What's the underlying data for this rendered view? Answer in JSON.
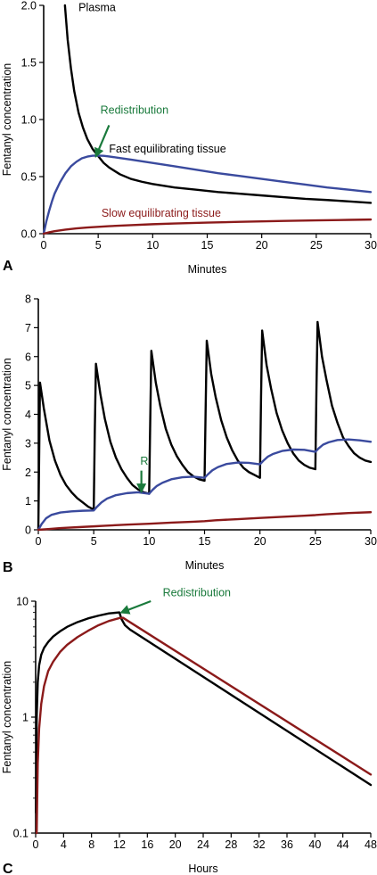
{
  "colors": {
    "plasma": "#000000",
    "fast": "#3a4a9e",
    "slow": "#8b1a1a",
    "annotation": "#1a7a3c"
  },
  "chart_data": [
    {
      "type": "line",
      "panel_label": "A",
      "xlabel": "Minutes",
      "ylabel": "Fentanyl concentration",
      "xlim": [
        0,
        30
      ],
      "ylim": [
        0,
        2.0
      ],
      "xticks": [
        0,
        5,
        10,
        15,
        20,
        25,
        30
      ],
      "yticks": [
        0.0,
        0.5,
        1.0,
        1.5,
        2.0
      ],
      "ytick_labels": [
        "0.0",
        "0.5",
        "1.0",
        "1.5",
        "2.0"
      ],
      "series": [
        {
          "name": "Plasma",
          "color_key": "plasma",
          "x": [
            1.95,
            2.2,
            2.5,
            2.8,
            3.2,
            3.6,
            4.0,
            4.5,
            5.0,
            5.5,
            6,
            7,
            8,
            9,
            10,
            12,
            14,
            16,
            18,
            20,
            22,
            24,
            26,
            28,
            30
          ],
          "y": [
            2.0,
            1.7,
            1.45,
            1.25,
            1.06,
            0.93,
            0.83,
            0.74,
            0.68,
            0.62,
            0.58,
            0.52,
            0.48,
            0.455,
            0.435,
            0.405,
            0.385,
            0.365,
            0.35,
            0.335,
            0.32,
            0.305,
            0.295,
            0.283,
            0.27
          ]
        },
        {
          "name": "Fast equilibrating tissue",
          "color_key": "fast",
          "x": [
            0,
            0.25,
            0.5,
            0.75,
            1.0,
            1.5,
            2.0,
            2.5,
            3.0,
            3.5,
            4.0,
            4.5,
            5.0,
            5.5,
            6,
            7,
            8,
            10,
            12,
            14,
            16,
            18,
            20,
            22,
            24,
            26,
            28,
            30
          ],
          "y": [
            0,
            0.11,
            0.2,
            0.28,
            0.35,
            0.45,
            0.53,
            0.59,
            0.63,
            0.66,
            0.675,
            0.683,
            0.684,
            0.682,
            0.676,
            0.663,
            0.649,
            0.62,
            0.59,
            0.56,
            0.53,
            0.505,
            0.48,
            0.455,
            0.43,
            0.405,
            0.385,
            0.365
          ]
        },
        {
          "name": "Slow equilibrating tissue",
          "color_key": "slow",
          "x": [
            0,
            0.5,
            1,
            2,
            3,
            4,
            5,
            6,
            8,
            10,
            12,
            15,
            18,
            20,
            22,
            25,
            28,
            30
          ],
          "y": [
            0,
            0.012,
            0.022,
            0.036,
            0.046,
            0.054,
            0.06,
            0.066,
            0.075,
            0.083,
            0.089,
            0.097,
            0.104,
            0.108,
            0.112,
            0.117,
            0.121,
            0.124
          ]
        }
      ],
      "annotations": [
        {
          "text": "Plasma",
          "x": 3.2,
          "y": 1.95,
          "color_key": "plasma"
        },
        {
          "text": "Redistribution",
          "x": 5.2,
          "y": 1.05,
          "color_key": "annotation",
          "arrow_to": [
            4.8,
            0.68
          ],
          "arrow_from": [
            6.0,
            0.95
          ]
        },
        {
          "text": "Fast equilibrating tissue",
          "x": 6.0,
          "y": 0.71,
          "color_key": "plasma"
        },
        {
          "text": "Slow equilibrating tissue",
          "x": 5.3,
          "y": 0.15,
          "color_key": "slow"
        }
      ]
    },
    {
      "type": "line",
      "panel_label": "B",
      "xlabel": "Minutes",
      "ylabel": "Fentanyl concentration",
      "xlim": [
        0,
        30
      ],
      "ylim": [
        0,
        8
      ],
      "xticks": [
        0,
        5,
        10,
        15,
        20,
        25,
        30
      ],
      "yticks": [
        0,
        1,
        2,
        3,
        4,
        5,
        6,
        7,
        8
      ],
      "ytick_labels": [
        "0",
        "1",
        "2",
        "3",
        "4",
        "5",
        "6",
        "7",
        "8"
      ],
      "series": [
        {
          "name": "",
          "color_key": "plasma",
          "x": [
            0,
            0.15,
            0.5,
            1,
            1.5,
            2,
            2.5,
            3,
            3.5,
            4,
            4.5,
            5,
            5.1,
            5.2,
            5.6,
            6,
            6.5,
            7,
            7.5,
            8,
            8.5,
            9,
            9.5,
            10,
            10.1,
            10.2,
            10.6,
            11,
            11.5,
            12,
            12.5,
            13,
            13.5,
            14,
            14.5,
            15,
            15.1,
            15.2,
            15.6,
            16,
            16.5,
            17,
            17.5,
            18,
            18.5,
            19,
            19.5,
            20,
            20.1,
            20.2,
            20.6,
            21,
            21.5,
            22,
            22.5,
            23,
            23.5,
            24,
            24.5,
            25,
            25.1,
            25.2,
            25.6,
            26,
            26.5,
            27,
            27.5,
            28,
            28.5,
            29,
            29.5,
            30
          ],
          "y": [
            0,
            5.1,
            4.2,
            3.1,
            2.4,
            1.9,
            1.55,
            1.3,
            1.1,
            0.95,
            0.8,
            0.7,
            3.5,
            5.75,
            4.7,
            3.85,
            3.05,
            2.5,
            2.1,
            1.8,
            1.55,
            1.4,
            1.3,
            1.25,
            3.8,
            6.2,
            5.1,
            4.3,
            3.5,
            2.95,
            2.55,
            2.25,
            2.0,
            1.85,
            1.75,
            1.7,
            4.2,
            6.55,
            5.4,
            4.6,
            3.8,
            3.2,
            2.75,
            2.4,
            2.15,
            2.0,
            1.9,
            1.8,
            4.6,
            6.9,
            5.7,
            4.9,
            4.05,
            3.45,
            3.0,
            2.65,
            2.4,
            2.25,
            2.15,
            2.1,
            4.9,
            7.2,
            6.0,
            5.2,
            4.3,
            3.7,
            3.2,
            2.9,
            2.65,
            2.5,
            2.4,
            2.35
          ]
        },
        {
          "name": "",
          "color_key": "fast",
          "x": [
            0,
            0.3,
            0.7,
            1.2,
            2,
            3,
            4,
            5,
            5.3,
            5.7,
            6.2,
            7,
            8,
            9,
            10,
            10.3,
            10.7,
            11.2,
            12,
            13,
            14,
            15,
            15.3,
            15.7,
            16.2,
            17,
            18,
            19,
            20,
            20.3,
            20.7,
            21.2,
            22,
            23,
            24,
            25,
            25.3,
            25.7,
            26.2,
            27,
            28,
            29,
            30
          ],
          "y": [
            0,
            0.2,
            0.4,
            0.52,
            0.6,
            0.64,
            0.66,
            0.67,
            0.8,
            0.95,
            1.08,
            1.2,
            1.27,
            1.3,
            1.25,
            1.38,
            1.52,
            1.63,
            1.75,
            1.82,
            1.84,
            1.8,
            1.92,
            2.06,
            2.17,
            2.28,
            2.33,
            2.32,
            2.27,
            2.39,
            2.53,
            2.63,
            2.73,
            2.78,
            2.77,
            2.7,
            2.82,
            2.95,
            3.03,
            3.11,
            3.13,
            3.1,
            3.05
          ]
        },
        {
          "name": "",
          "color_key": "slow",
          "x": [
            0,
            1,
            2,
            4,
            5,
            6,
            8,
            10,
            12,
            14,
            15,
            16,
            18,
            20,
            22,
            24,
            25,
            26,
            28,
            30
          ],
          "y": [
            0,
            0.03,
            0.06,
            0.1,
            0.12,
            0.14,
            0.18,
            0.21,
            0.25,
            0.28,
            0.3,
            0.33,
            0.37,
            0.41,
            0.45,
            0.49,
            0.51,
            0.54,
            0.58,
            0.61
          ]
        }
      ],
      "annotations": [
        {
          "text": "R",
          "x": 9.2,
          "y": 2.25,
          "color_key": "annotation",
          "arrow_to": [
            9.3,
            1.33
          ],
          "arrow_from": [
            9.3,
            2.05
          ]
        }
      ]
    },
    {
      "type": "line",
      "panel_label": "C",
      "xlabel": "Hours",
      "ylabel": "Fentanyl concentration",
      "yscale": "log",
      "xlim": [
        0,
        48
      ],
      "ylim": [
        0.1,
        10
      ],
      "xticks": [
        0,
        4,
        8,
        12,
        16,
        20,
        24,
        28,
        32,
        36,
        40,
        44,
        48
      ],
      "yticks": [
        0.1,
        1,
        10
      ],
      "ytick_labels": [
        "0.1",
        "1",
        "10"
      ],
      "series": [
        {
          "name": "",
          "color_key": "plasma",
          "x": [
            0.05,
            0.15,
            0.3,
            0.5,
            0.8,
            1.2,
            1.8,
            2.5,
            3.5,
            4.5,
            6,
            7.5,
            9,
            10.5,
            12,
            12.3,
            12.8,
            13.5,
            48
          ],
          "y": [
            0.15,
            1.0,
            2.0,
            2.8,
            3.45,
            3.95,
            4.45,
            4.95,
            5.5,
            6.0,
            6.6,
            7.1,
            7.5,
            7.85,
            8.0,
            7.0,
            6.2,
            5.7,
            0.26
          ]
        },
        {
          "name": "",
          "color_key": "slow",
          "x": [
            0.15,
            0.3,
            0.5,
            0.8,
            1.2,
            1.8,
            2.5,
            3.5,
            4.5,
            6,
            7.5,
            9,
            10.5,
            12,
            12.5,
            48
          ],
          "y": [
            0.1,
            0.4,
            0.8,
            1.3,
            1.85,
            2.5,
            3.0,
            3.65,
            4.2,
            4.9,
            5.55,
            6.2,
            6.75,
            7.15,
            7.2,
            0.32
          ]
        }
      ],
      "annotations": [
        {
          "text": "Redistribution",
          "x": 18.2,
          "y": 11.0,
          "color_key": "annotation",
          "arrow_to": [
            12.3,
            8.0
          ],
          "arrow_from": [
            16.5,
            10.0
          ]
        }
      ]
    }
  ]
}
